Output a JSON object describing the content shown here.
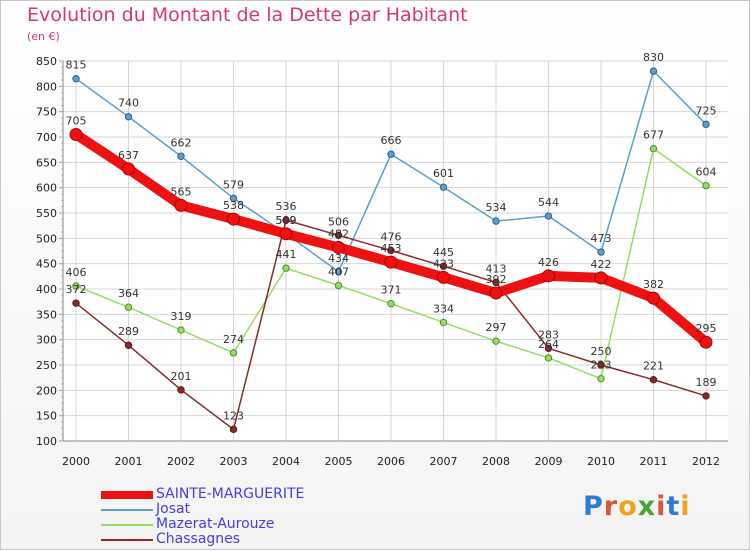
{
  "title": "Evolution du Montant de la Dette par Habitant",
  "unit": "(en €)",
  "logo": {
    "letters": [
      "P",
      "r",
      "o",
      "x",
      "i",
      "t",
      "i"
    ],
    "colors": [
      "#2c7bd6",
      "#e2533b",
      "#f3a21d",
      "#4aa43a",
      "#e2533b",
      "#2c7bd6",
      "#f3a21d"
    ]
  },
  "chart_data": {
    "type": "line",
    "title": "Evolution du Montant de la Dette par Habitant",
    "ylabel": "(en €)",
    "xlabel": "",
    "ylim": [
      100,
      850
    ],
    "yticks": [
      100,
      150,
      200,
      250,
      300,
      350,
      400,
      450,
      500,
      550,
      600,
      650,
      700,
      750,
      800,
      850
    ],
    "grid": true,
    "legend_position": "bottom-left",
    "x": [
      "2000",
      "2001",
      "2002",
      "2003",
      "2004",
      "2005",
      "2006",
      "2007",
      "2008",
      "2009",
      "2010",
      "2011",
      "2012"
    ],
    "series": [
      {
        "name": "SAINTE-MARGUERITE",
        "color": "#ee1111",
        "values": [
          705,
          637,
          565,
          538,
          509,
          482,
          453,
          423,
          392,
          426,
          422,
          382,
          295
        ]
      },
      {
        "name": "Josat",
        "color": "#5a9fd4",
        "values": [
          815,
          740,
          662,
          579,
          509,
          434,
          666,
          601,
          534,
          544,
          473,
          830,
          725
        ]
      },
      {
        "name": "Mazerat-Aurouze",
        "color": "#90e060",
        "values": [
          406,
          364,
          319,
          274,
          441,
          407,
          371,
          334,
          297,
          264,
          223,
          677,
          604
        ]
      },
      {
        "name": "Chassagnes",
        "color": "#8a2a2a",
        "values": [
          372,
          289,
          201,
          123,
          536,
          506,
          476,
          445,
          413,
          283,
          250,
          221,
          189
        ]
      }
    ],
    "data_labels": [
      [
        "705",
        "637",
        "565",
        "538",
        "509",
        "482",
        "453",
        "423",
        "392",
        "426",
        "422",
        "382",
        "295"
      ],
      [
        "815",
        "740",
        "662",
        "579",
        "509",
        "434",
        "666",
        "601",
        "534",
        "544",
        "473",
        "830",
        "725"
      ],
      [
        "406",
        "364",
        "319",
        "274",
        "441",
        "407",
        "371",
        "334",
        "297",
        "264",
        "223",
        "677",
        "604"
      ],
      [
        "372",
        "289",
        "201",
        "123",
        "536",
        "506",
        "476",
        "445",
        "413",
        "283",
        "250",
        "221",
        "189"
      ]
    ]
  }
}
